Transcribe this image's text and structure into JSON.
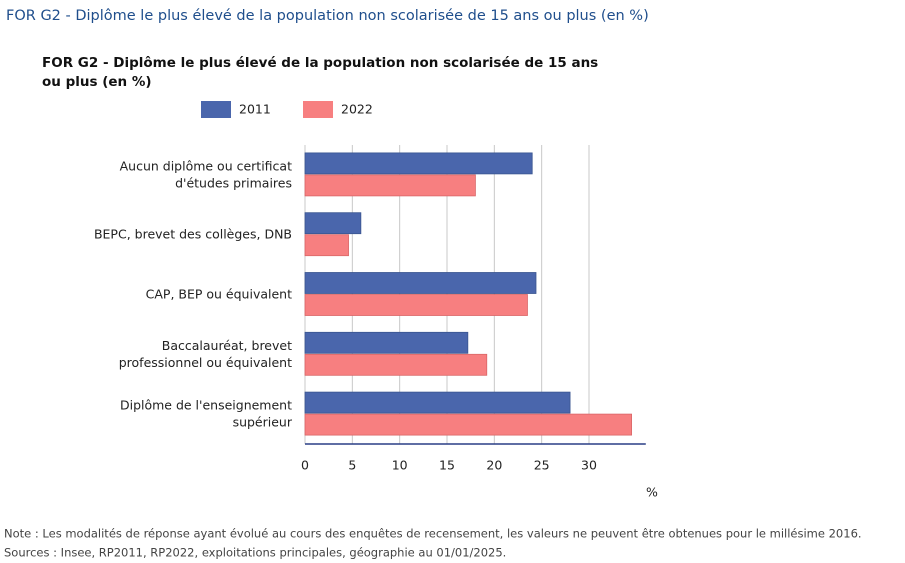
{
  "header": {
    "title": "FOR G2 - Diplôme le plus élevé de la population non scolarisée de 15 ans ou plus (en %)"
  },
  "chart_data": {
    "type": "barh",
    "title": "FOR G2 - Diplôme le plus élevé de la population non scolarisée de 15 ans ou plus (en %)",
    "categories": [
      "Aucun diplôme ou certificat d'études primaires",
      "BEPC, brevet des collèges, DNB",
      "CAP, BEP ou équivalent",
      "Baccalauréat, brevet professionnel ou équivalent",
      "Diplôme de l'enseignement supérieur"
    ],
    "series": [
      {
        "name": "2011",
        "color": "#4a66ac",
        "values": [
          24.0,
          5.9,
          24.4,
          17.2,
          28.0
        ]
      },
      {
        "name": "2022",
        "color": "#f77f80",
        "values": [
          18.0,
          4.6,
          23.5,
          19.2,
          34.5
        ]
      }
    ],
    "xlim": [
      0,
      36
    ],
    "xticks": [
      0,
      5,
      10,
      15,
      20,
      25,
      30
    ],
    "xlabel": "%",
    "grid": true,
    "legend": "top"
  },
  "notes": [
    "Note : Les modalités de réponse ayant évolué au cours des enquêtes de recensement, les valeurs ne peuvent être obtenues pour le millésime 2016.",
    "Sources : Insee, RP2011, RP2022, exploitations principales, géographie au 01/01/2025."
  ]
}
